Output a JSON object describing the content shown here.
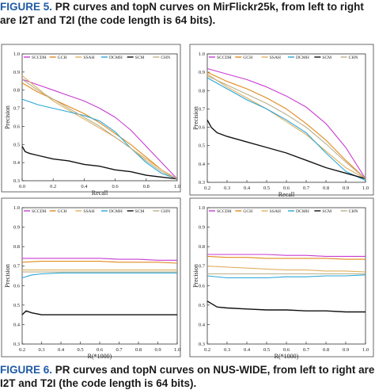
{
  "captions": {
    "fig5_label": "FIGURE 5.",
    "fig5_line1": "PR curves and topN curves on MirFlickr25k, from left to right",
    "fig5_line2": "are I2T and T2I (the code length is 64 bits).",
    "fig6_label": "FIGURE 6.",
    "fig6_line1": "PR curves and topN curves on NUS-WIDE, from left to right are",
    "fig6_line2": "I2T and T2I (the code length is 64 bits)."
  },
  "legend": [
    "SCCDH",
    "GCH",
    "SSAH",
    "DCMH",
    "SCM",
    "CHN"
  ],
  "colors": {
    "SCCDH": "#c83cd2",
    "GCH": "#e08a1e",
    "SSAH": "#e0b060",
    "DCMH": "#2aa7d8",
    "SCM": "#111111",
    "CHN": "#b8b08a"
  },
  "chart_data": [
    {
      "type": "line",
      "xlabel": "Recall",
      "ylabel": "Precision",
      "xlim": [
        0,
        1
      ],
      "ylim": [
        0.3,
        1.0
      ],
      "xticks": [
        "0.0",
        "0.2",
        "0.4",
        "0.6",
        "0.8",
        "1.0"
      ],
      "yticks": [
        "0.3",
        "0.4",
        "0.5",
        "0.6",
        "0.7",
        "0.8",
        "0.9",
        "1.0"
      ],
      "series": [
        {
          "name": "SCCDH",
          "x": [
            0,
            0.1,
            0.2,
            0.3,
            0.4,
            0.5,
            0.6,
            0.7,
            0.8,
            0.9,
            1.0
          ],
          "y": [
            0.86,
            0.83,
            0.8,
            0.77,
            0.74,
            0.7,
            0.65,
            0.58,
            0.49,
            0.4,
            0.31
          ]
        },
        {
          "name": "GCH",
          "x": [
            0,
            0.1,
            0.2,
            0.3,
            0.4,
            0.5,
            0.6,
            0.7,
            0.8,
            0.9,
            1.0
          ],
          "y": [
            0.84,
            0.79,
            0.75,
            0.71,
            0.67,
            0.62,
            0.56,
            0.5,
            0.43,
            0.36,
            0.31
          ]
        },
        {
          "name": "SSAH",
          "x": [
            0,
            0.1,
            0.2,
            0.3,
            0.4,
            0.5,
            0.6,
            0.7,
            0.8,
            0.9,
            1.0
          ],
          "y": [
            0.88,
            0.81,
            0.74,
            0.69,
            0.64,
            0.59,
            0.54,
            0.48,
            0.42,
            0.36,
            0.31
          ]
        },
        {
          "name": "DCMH",
          "x": [
            0,
            0.1,
            0.2,
            0.3,
            0.4,
            0.5,
            0.6,
            0.7,
            0.8,
            0.9,
            1.0
          ],
          "y": [
            0.75,
            0.72,
            0.7,
            0.68,
            0.66,
            0.63,
            0.57,
            0.48,
            0.4,
            0.34,
            0.31
          ]
        },
        {
          "name": "SCM",
          "x": [
            0,
            0.02,
            0.05,
            0.1,
            0.2,
            0.3,
            0.4,
            0.5,
            0.6,
            0.7,
            0.8,
            0.9,
            1.0
          ],
          "y": [
            0.49,
            0.46,
            0.45,
            0.44,
            0.42,
            0.41,
            0.39,
            0.38,
            0.36,
            0.35,
            0.33,
            0.32,
            0.31
          ]
        },
        {
          "name": "CHN",
          "x": [
            0,
            0.1,
            0.2,
            0.3,
            0.4,
            0.5,
            0.6,
            0.7,
            0.8,
            0.9,
            1.0
          ],
          "y": [
            0.86,
            0.8,
            0.75,
            0.7,
            0.65,
            0.6,
            0.54,
            0.48,
            0.41,
            0.35,
            0.31
          ]
        }
      ]
    },
    {
      "type": "line",
      "xlabel": "Recall",
      "ylabel": "Precision",
      "xlim": [
        0.2,
        1.0
      ],
      "ylim": [
        0.3,
        1.0
      ],
      "xticks": [
        "0.2",
        "0.3",
        "0.4",
        "0.5",
        "0.6",
        "0.7",
        "0.8",
        "0.9",
        "1.0"
      ],
      "yticks": [
        "0.3",
        "0.4",
        "0.5",
        "0.6",
        "0.7",
        "0.8",
        "0.9",
        "1.0"
      ],
      "series": [
        {
          "name": "SCCDH",
          "x": [
            0.2,
            0.3,
            0.4,
            0.5,
            0.6,
            0.7,
            0.8,
            0.9,
            1.0
          ],
          "y": [
            0.92,
            0.89,
            0.86,
            0.82,
            0.77,
            0.71,
            0.62,
            0.49,
            0.32
          ]
        },
        {
          "name": "GCH",
          "x": [
            0.2,
            0.3,
            0.4,
            0.5,
            0.6,
            0.7,
            0.8,
            0.9,
            1.0
          ],
          "y": [
            0.9,
            0.85,
            0.81,
            0.76,
            0.7,
            0.62,
            0.53,
            0.42,
            0.32
          ]
        },
        {
          "name": "SSAH",
          "x": [
            0.2,
            0.3,
            0.4,
            0.5,
            0.6,
            0.7,
            0.8,
            0.9,
            1.0
          ],
          "y": [
            0.89,
            0.82,
            0.76,
            0.7,
            0.63,
            0.56,
            0.47,
            0.38,
            0.32
          ]
        },
        {
          "name": "DCMH",
          "x": [
            0.2,
            0.3,
            0.4,
            0.5,
            0.6,
            0.7,
            0.8,
            0.9,
            1.0
          ],
          "y": [
            0.87,
            0.81,
            0.75,
            0.7,
            0.64,
            0.57,
            0.46,
            0.36,
            0.31
          ]
        },
        {
          "name": "SCM",
          "x": [
            0.2,
            0.22,
            0.25,
            0.3,
            0.4,
            0.5,
            0.6,
            0.7,
            0.8,
            0.9,
            1.0
          ],
          "y": [
            0.64,
            0.6,
            0.57,
            0.55,
            0.52,
            0.49,
            0.46,
            0.42,
            0.38,
            0.35,
            0.32
          ]
        },
        {
          "name": "CHN",
          "x": [
            0.2,
            0.3,
            0.4,
            0.5,
            0.6,
            0.7,
            0.8,
            0.9,
            1.0
          ],
          "y": [
            0.88,
            0.83,
            0.78,
            0.73,
            0.67,
            0.6,
            0.51,
            0.41,
            0.32
          ]
        }
      ]
    },
    {
      "type": "line",
      "xlabel": "R(*1000)",
      "ylabel": "Precision",
      "xlim": [
        0.2,
        1.0
      ],
      "ylim": [
        0.3,
        1.0
      ],
      "xticks": [
        "0.2",
        "0.3",
        "0.4",
        "0.5",
        "0.6",
        "0.7",
        "0.8",
        "0.9",
        "1.0"
      ],
      "yticks": [
        "0.3",
        "0.4",
        "0.5",
        "0.6",
        "0.7",
        "0.8",
        "0.9",
        "1.0"
      ],
      "series": [
        {
          "name": "SCCDH",
          "x": [
            0.2,
            0.3,
            0.4,
            0.5,
            0.6,
            0.7,
            0.8,
            0.9,
            1.0
          ],
          "y": [
            0.74,
            0.74,
            0.74,
            0.74,
            0.74,
            0.735,
            0.735,
            0.73,
            0.73
          ]
        },
        {
          "name": "GCH",
          "x": [
            0.2,
            0.3,
            0.4,
            0.5,
            0.6,
            0.7,
            0.8,
            0.9,
            1.0
          ],
          "y": [
            0.72,
            0.725,
            0.725,
            0.725,
            0.725,
            0.72,
            0.72,
            0.72,
            0.715
          ]
        },
        {
          "name": "SSAH",
          "x": [
            0.2,
            0.3,
            0.4,
            0.5,
            0.6,
            0.7,
            0.8,
            0.9,
            1.0
          ],
          "y": [
            0.68,
            0.68,
            0.68,
            0.68,
            0.68,
            0.68,
            0.68,
            0.68,
            0.68
          ]
        },
        {
          "name": "DCMH",
          "x": [
            0.2,
            0.25,
            0.3,
            0.4,
            0.5,
            0.6,
            0.7,
            0.8,
            0.9,
            1.0
          ],
          "y": [
            0.64,
            0.655,
            0.66,
            0.665,
            0.665,
            0.665,
            0.665,
            0.665,
            0.665,
            0.665
          ]
        },
        {
          "name": "SCM",
          "x": [
            0.2,
            0.22,
            0.25,
            0.3,
            0.4,
            0.5,
            0.6,
            0.7,
            0.8,
            0.9,
            1.0
          ],
          "y": [
            0.45,
            0.47,
            0.46,
            0.45,
            0.45,
            0.45,
            0.45,
            0.45,
            0.45,
            0.45,
            0.45
          ]
        },
        {
          "name": "CHN",
          "x": [
            0.2,
            0.3,
            0.4,
            0.5,
            0.6,
            0.7,
            0.8,
            0.9,
            1.0
          ],
          "y": [
            0.67,
            0.67,
            0.67,
            0.67,
            0.67,
            0.67,
            0.67,
            0.67,
            0.67
          ]
        }
      ]
    },
    {
      "type": "line",
      "xlabel": "R(*1000)",
      "ylabel": "Precision",
      "xlim": [
        0.2,
        1.0
      ],
      "ylim": [
        0.3,
        1.0
      ],
      "xticks": [
        "0.2",
        "0.3",
        "0.4",
        "0.5",
        "0.6",
        "0.7",
        "0.8",
        "0.9",
        "1.0"
      ],
      "yticks": [
        "0.3",
        "0.4",
        "0.5",
        "0.6",
        "0.7",
        "0.8",
        "0.9",
        "1.0"
      ],
      "series": [
        {
          "name": "SCCDH",
          "x": [
            0.2,
            0.3,
            0.4,
            0.5,
            0.6,
            0.7,
            0.8,
            0.9,
            1.0
          ],
          "y": [
            0.76,
            0.76,
            0.76,
            0.76,
            0.755,
            0.755,
            0.75,
            0.75,
            0.75
          ]
        },
        {
          "name": "GCH",
          "x": [
            0.2,
            0.3,
            0.4,
            0.5,
            0.6,
            0.7,
            0.8,
            0.9,
            1.0
          ],
          "y": [
            0.75,
            0.745,
            0.745,
            0.74,
            0.74,
            0.74,
            0.74,
            0.735,
            0.735
          ]
        },
        {
          "name": "SSAH",
          "x": [
            0.2,
            0.3,
            0.4,
            0.5,
            0.6,
            0.7,
            0.8,
            0.9,
            1.0
          ],
          "y": [
            0.7,
            0.695,
            0.69,
            0.685,
            0.68,
            0.68,
            0.675,
            0.675,
            0.67
          ]
        },
        {
          "name": "DCMH",
          "x": [
            0.2,
            0.3,
            0.4,
            0.5,
            0.6,
            0.7,
            0.8,
            0.9,
            1.0
          ],
          "y": [
            0.65,
            0.64,
            0.64,
            0.64,
            0.645,
            0.645,
            0.65,
            0.65,
            0.655
          ]
        },
        {
          "name": "SCM",
          "x": [
            0.2,
            0.25,
            0.3,
            0.4,
            0.5,
            0.6,
            0.7,
            0.8,
            0.9,
            1.0
          ],
          "y": [
            0.52,
            0.49,
            0.485,
            0.48,
            0.475,
            0.475,
            0.47,
            0.47,
            0.465,
            0.465
          ]
        },
        {
          "name": "CHN",
          "x": [
            0.2,
            0.3,
            0.4,
            0.5,
            0.6,
            0.7,
            0.8,
            0.9,
            1.0
          ],
          "y": [
            0.66,
            0.66,
            0.66,
            0.66,
            0.66,
            0.66,
            0.66,
            0.66,
            0.66
          ]
        }
      ]
    }
  ]
}
